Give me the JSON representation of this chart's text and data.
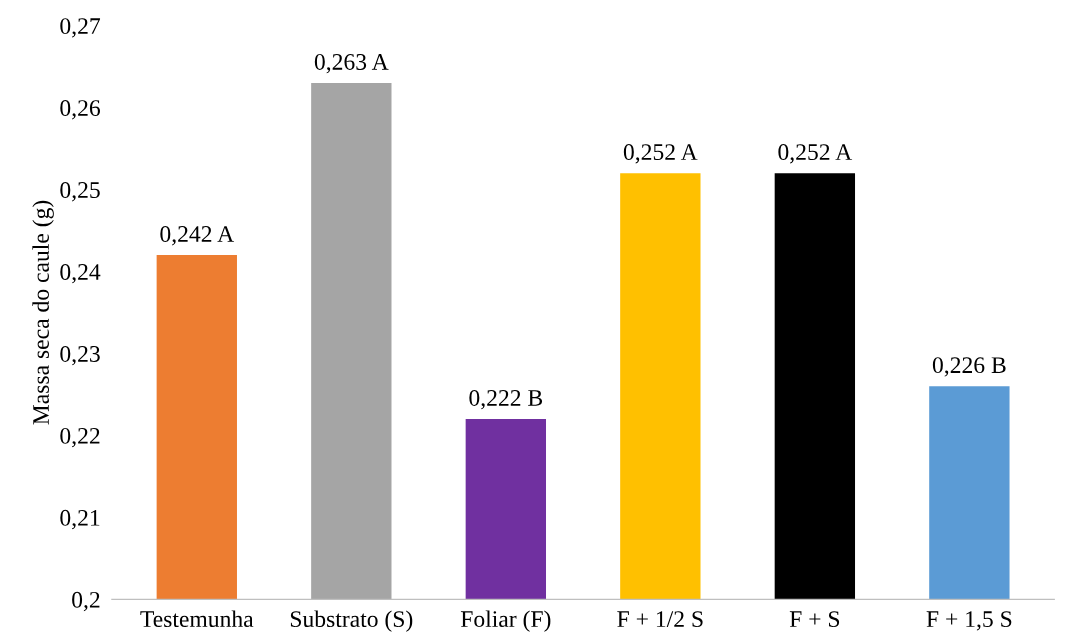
{
  "chart_data": {
    "type": "bar",
    "ylabel": "Massa seca do caule (g)",
    "categories": [
      "Testemunha",
      "Substrato (S)",
      "Foliar (F)",
      "F + 1/2 S",
      "F + S",
      "F + 1,5 S"
    ],
    "values": [
      0.242,
      0.263,
      0.222,
      0.252,
      0.252,
      0.226
    ],
    "colors": [
      "#ed7d31",
      "#a5a5a5",
      "#7030a0",
      "#ffc000",
      "#000000",
      "#5b9bd5"
    ],
    "value_labels": [
      "0,242 A",
      "0,263 A",
      "0,222 B",
      "0,252 A",
      "0,252 A",
      "0,226 B"
    ],
    "ylim": [
      0.2,
      0.27
    ],
    "yticks": [
      {
        "value": 0.2,
        "label": "0,2"
      },
      {
        "value": 0.21,
        "label": "0,21"
      },
      {
        "value": 0.22,
        "label": "0,22"
      },
      {
        "value": 0.23,
        "label": "0,23"
      },
      {
        "value": 0.24,
        "label": "0,24"
      },
      {
        "value": 0.25,
        "label": "0,25"
      },
      {
        "value": 0.26,
        "label": "0,26"
      },
      {
        "value": 0.27,
        "label": "0,27"
      }
    ],
    "grid": false,
    "legend": false
  }
}
